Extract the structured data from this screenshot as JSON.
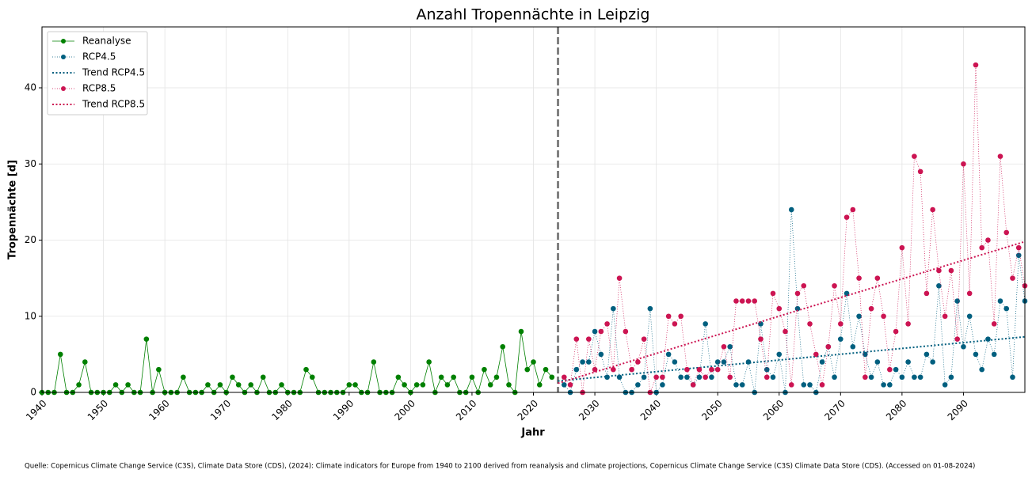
{
  "chart_data": {
    "type": "line",
    "title": "Anzahl Tropennächte in Leipzig",
    "xlabel": "Jahr",
    "ylabel": "Tropennächte [d]",
    "source": "Quelle: Copernicus Climate Change Service (C3S), Climate Data Store (CDS), (2024): Climate indicators for Europe from 1940 to 2100 derived from reanalysis and climate projections, Copernicus Climate Change Service (C3S) Climate Data Store (CDS). (Accessed on 01-08-2024)",
    "xlim": [
      1940,
      2100
    ],
    "xticks": [
      1940,
      1950,
      1960,
      1970,
      1980,
      1990,
      2000,
      2010,
      2020,
      2030,
      2040,
      2050,
      2060,
      2070,
      2080,
      2090
    ],
    "ylim": [
      0,
      48
    ],
    "yticks": [
      0,
      10,
      20,
      30,
      40
    ],
    "grid": true,
    "legend": "upper left",
    "vline": 2024,
    "vline_color": "#808080",
    "series": [
      {
        "name": "Reanalyse",
        "color": "#008000",
        "linestyle": "solid",
        "marker": true,
        "x": [
          1940,
          1941,
          1942,
          1943,
          1944,
          1945,
          1946,
          1947,
          1948,
          1949,
          1950,
          1951,
          1952,
          1953,
          1954,
          1955,
          1956,
          1957,
          1958,
          1959,
          1960,
          1961,
          1962,
          1963,
          1964,
          1965,
          1966,
          1967,
          1968,
          1969,
          1970,
          1971,
          1972,
          1973,
          1974,
          1975,
          1976,
          1977,
          1978,
          1979,
          1980,
          1981,
          1982,
          1983,
          1984,
          1985,
          1986,
          1987,
          1988,
          1989,
          1990,
          1991,
          1992,
          1993,
          1994,
          1995,
          1996,
          1997,
          1998,
          1999,
          2000,
          2001,
          2002,
          2003,
          2004,
          2005,
          2006,
          2007,
          2008,
          2009,
          2010,
          2011,
          2012,
          2013,
          2014,
          2015,
          2016,
          2017,
          2018,
          2019,
          2020,
          2021,
          2022,
          2023
        ],
        "values": [
          0,
          0,
          0,
          5,
          0,
          0,
          1,
          4,
          0,
          0,
          0,
          0,
          1,
          0,
          1,
          0,
          0,
          7,
          0,
          3,
          0,
          0,
          0,
          2,
          0,
          0,
          0,
          1,
          0,
          1,
          0,
          2,
          1,
          0,
          1,
          0,
          2,
          0,
          0,
          1,
          0,
          0,
          0,
          3,
          2,
          0,
          0,
          0,
          0,
          0,
          1,
          1,
          0,
          0,
          4,
          0,
          0,
          0,
          2,
          1,
          0,
          1,
          1,
          4,
          0,
          2,
          1,
          2,
          0,
          0,
          2,
          0,
          3,
          1,
          2,
          6,
          1,
          0,
          8,
          3,
          4,
          1,
          3,
          2
        ]
      },
      {
        "name": "RCP4.5",
        "color": "#005f7f",
        "linestyle": "dotted",
        "marker": true,
        "x": [
          2025,
          2026,
          2027,
          2028,
          2029,
          2030,
          2031,
          2032,
          2033,
          2034,
          2035,
          2036,
          2037,
          2038,
          2039,
          2040,
          2041,
          2042,
          2043,
          2044,
          2045,
          2046,
          2047,
          2048,
          2049,
          2050,
          2051,
          2052,
          2053,
          2054,
          2055,
          2056,
          2057,
          2058,
          2059,
          2060,
          2061,
          2062,
          2063,
          2064,
          2065,
          2066,
          2067,
          2068,
          2069,
          2070,
          2071,
          2072,
          2073,
          2074,
          2075,
          2076,
          2077,
          2078,
          2079,
          2080,
          2081,
          2082,
          2083,
          2084,
          2085,
          2086,
          2087,
          2088,
          2089,
          2090,
          2091,
          2092,
          2093,
          2094,
          2095,
          2096,
          2097,
          2098,
          2099,
          2100
        ],
        "values": [
          1,
          0,
          3,
          4,
          4,
          8,
          5,
          2,
          11,
          2,
          0,
          0,
          1,
          2,
          11,
          0,
          1,
          5,
          4,
          2,
          2,
          1,
          2,
          9,
          2,
          4,
          4,
          6,
          1,
          1,
          4,
          0,
          9,
          3,
          2,
          5,
          0,
          24,
          11,
          1,
          1,
          0,
          4,
          6,
          2,
          7,
          13,
          6,
          10,
          5,
          2,
          4,
          1,
          1,
          3,
          2,
          4,
          2,
          2,
          5,
          4,
          14,
          1,
          2,
          12,
          6,
          10,
          5,
          3,
          7,
          5,
          12,
          11,
          2,
          18,
          12
        ]
      },
      {
        "name": "Trend RCP4.5",
        "color": "#005f7f",
        "linestyle": "trend",
        "marker": false,
        "x": [
          2024,
          2100
        ],
        "values": [
          1.5,
          7.3
        ]
      },
      {
        "name": "RCP8.5",
        "color": "#cc1452",
        "linestyle": "dotted",
        "marker": true,
        "x": [
          2025,
          2026,
          2027,
          2028,
          2029,
          2030,
          2031,
          2032,
          2033,
          2034,
          2035,
          2036,
          2037,
          2038,
          2039,
          2040,
          2041,
          2042,
          2043,
          2044,
          2045,
          2046,
          2047,
          2048,
          2049,
          2050,
          2051,
          2052,
          2053,
          2054,
          2055,
          2056,
          2057,
          2058,
          2059,
          2060,
          2061,
          2062,
          2063,
          2064,
          2065,
          2066,
          2067,
          2068,
          2069,
          2070,
          2071,
          2072,
          2073,
          2074,
          2075,
          2076,
          2077,
          2078,
          2079,
          2080,
          2081,
          2082,
          2083,
          2084,
          2085,
          2086,
          2087,
          2088,
          2089,
          2090,
          2091,
          2092,
          2093,
          2094,
          2095,
          2096,
          2097,
          2098,
          2099,
          2100
        ],
        "values": [
          2,
          1,
          7,
          0,
          7,
          3,
          8,
          9,
          3,
          15,
          8,
          3,
          4,
          7,
          0,
          2,
          2,
          10,
          9,
          10,
          3,
          1,
          3,
          2,
          3,
          3,
          6,
          2,
          12,
          12,
          12,
          12,
          7,
          2,
          13,
          11,
          8,
          1,
          13,
          14,
          9,
          5,
          1,
          6,
          14,
          9,
          23,
          24,
          15,
          2,
          11,
          15,
          10,
          3,
          8,
          19,
          9,
          31,
          29,
          13,
          24,
          16,
          10,
          16,
          7,
          30,
          13,
          43,
          19,
          20,
          9,
          31,
          21,
          15,
          19,
          14
        ]
      },
      {
        "name": "Trend RCP8.5",
        "color": "#cc1452",
        "linestyle": "trend",
        "marker": false,
        "x": [
          2024,
          2100
        ],
        "values": [
          1.2,
          19.8
        ]
      }
    ]
  }
}
